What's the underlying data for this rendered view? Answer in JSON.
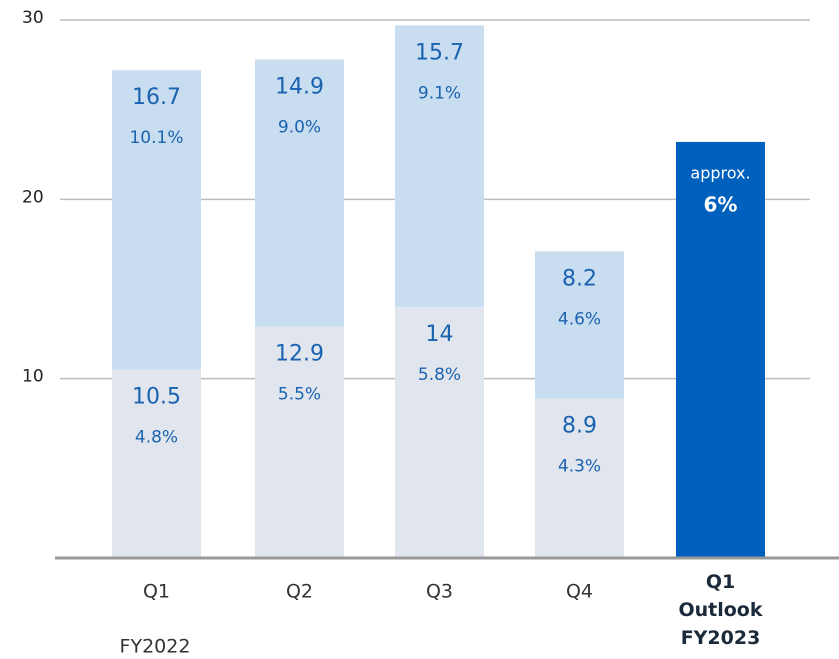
{
  "chart_data": {
    "type": "stacked_bar",
    "categories": [
      "Q1",
      "Q2",
      "Q3",
      "Q4",
      "Q1 Outlook FY2023"
    ],
    "period_label": "FY2022",
    "series": [
      {
        "color": "#e1e6ee",
        "values": [
          10.5,
          12.9,
          14.0,
          8.9,
          null
        ],
        "notes": [
          "4.8%",
          "5.5%",
          "5.8%",
          "4.3%",
          null
        ]
      },
      {
        "color": "#c9ddf0",
        "values": [
          16.7,
          14.9,
          15.7,
          8.2,
          null
        ],
        "notes": [
          "10.1%",
          "9.0%",
          "9.1%",
          "4.6%",
          null
        ]
      },
      {
        "color": "#0060bd",
        "values": [
          null,
          null,
          null,
          null,
          23.2
        ],
        "notes": [
          null,
          null,
          null,
          null,
          "approx."
        ],
        "value_labels": [
          null,
          null,
          null,
          null,
          "6%"
        ]
      }
    ],
    "ylim": [
      0,
      30
    ],
    "yticks": [
      10,
      20,
      30
    ],
    "grid": true
  }
}
